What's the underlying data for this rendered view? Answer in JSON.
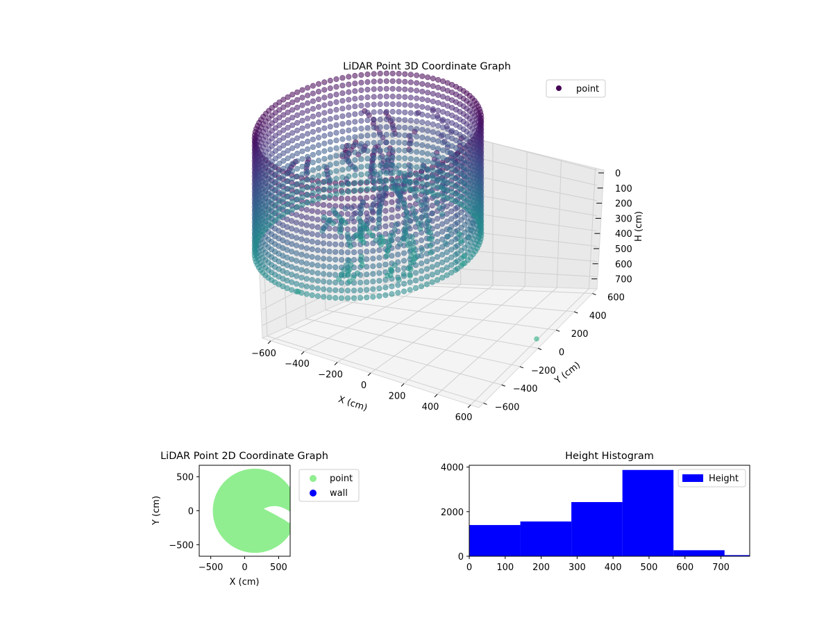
{
  "chart_data": [
    {
      "type": "scatter",
      "projection": "3d",
      "title": "LiDAR Point 3D Coordinate Graph",
      "xlabel": "X (cm)",
      "ylabel": "Y (cm)",
      "zlabel": "H (cm)",
      "xticks": [
        "−600",
        "−400",
        "−200",
        "0",
        "200",
        "400",
        "600"
      ],
      "yticks": [
        "−600",
        "−400",
        "−200",
        "0",
        "200",
        "400",
        "600"
      ],
      "zticks": [
        "0",
        "100",
        "200",
        "300",
        "400",
        "500",
        "600",
        "700"
      ],
      "xlim": [
        -650,
        650
      ],
      "ylim": [
        -650,
        650
      ],
      "zlim": [
        0,
        780
      ],
      "z_inverted": true,
      "grid": true,
      "legend": {
        "placement": "top-right",
        "entries": [
          "point"
        ]
      },
      "colormap": "viridis",
      "series": [
        {
          "name": "point",
          "description_shape": "ring wall",
          "ring_radius": 600,
          "z_top": 0,
          "z_bottom": 700,
          "color": "#440154",
          "points": [
            [
              600,
              0,
              700
            ],
            [
              424,
              424,
              700
            ],
            [
              0,
              600,
              700
            ],
            [
              -424,
              424,
              700
            ],
            [
              -600,
              0,
              700
            ],
            [
              -424,
              -424,
              700
            ],
            [
              0,
              -600,
              700
            ],
            [
              424,
              -424,
              700
            ],
            [
              600,
              0,
              0
            ],
            [
              0,
              600,
              0
            ],
            [
              -600,
              0,
              0
            ],
            [
              0,
              -600,
              0
            ],
            [
              150,
              120,
              100
            ],
            [
              120,
              100,
              250
            ],
            [
              100,
              80,
              400
            ],
            [
              50,
              -100,
              600
            ],
            [
              480,
              -620,
              780
            ]
          ]
        }
      ]
    },
    {
      "type": "scatter",
      "title": "LiDAR Point 2D Coordinate Graph",
      "xlabel": "X (cm)",
      "ylabel": "Y (cm)",
      "xticks": [
        "−500",
        "0",
        "500"
      ],
      "yticks": [
        "−500",
        "0",
        "500"
      ],
      "xlim": [
        -670,
        670
      ],
      "ylim": [
        -670,
        670
      ],
      "grid": false,
      "legend": {
        "placement": "outside-right",
        "entries": [
          "point",
          "wall"
        ]
      },
      "series": [
        {
          "name": "point",
          "color": "#90ee90",
          "shape": "disc",
          "center": [
            150,
            0
          ],
          "radius": 620
        },
        {
          "name": "wall",
          "color": "#0000ff",
          "values": []
        }
      ]
    },
    {
      "type": "bar",
      "title": "Height Histogram",
      "xlabel": "",
      "ylabel": "",
      "xticks": [
        "0",
        "100",
        "200",
        "300",
        "400",
        "500",
        "600",
        "700"
      ],
      "yticks": [
        "0",
        "2000",
        "4000"
      ],
      "xlim": [
        0,
        780
      ],
      "ylim": [
        0,
        4080
      ],
      "grid": false,
      "legend": {
        "placement": "top-right",
        "entries": [
          "Height"
        ]
      },
      "series": [
        {
          "name": "Height",
          "color": "#0000ff",
          "bin_edges": [
            0,
            142,
            284,
            426,
            568,
            710,
            852
          ],
          "values": [
            1400,
            1560,
            2430,
            3870,
            270,
            50
          ]
        }
      ]
    }
  ]
}
